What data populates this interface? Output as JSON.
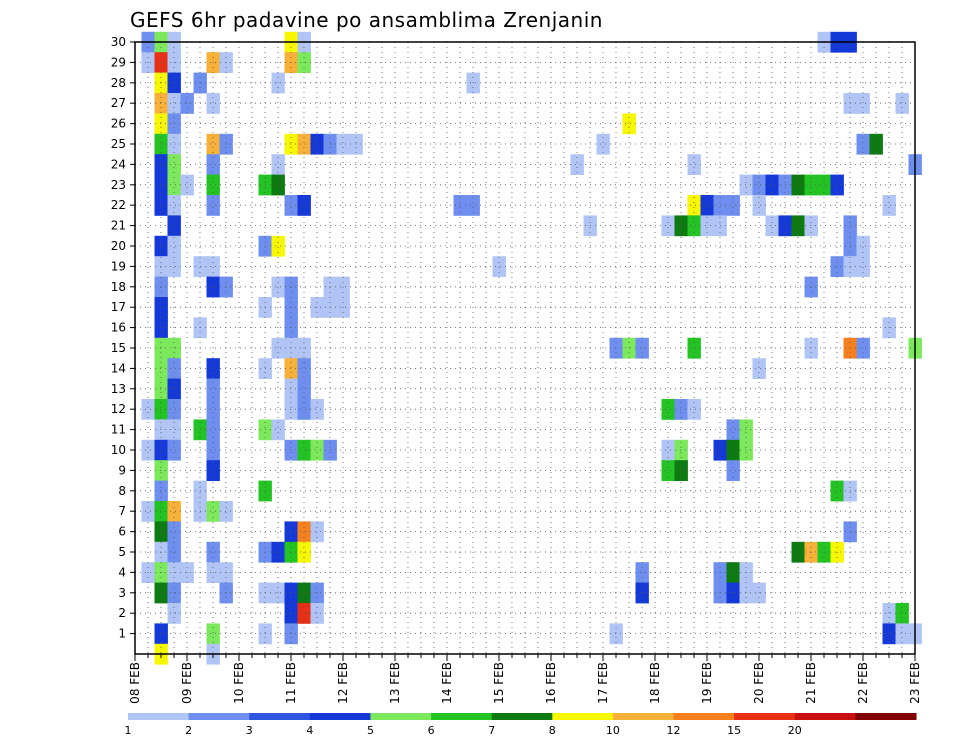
{
  "chart_data": {
    "type": "heatmap",
    "title": "GEFS 6hr padavine po ansamblima Zrenjanin",
    "xlabel": "",
    "ylabel": "",
    "x_tick_labels": [
      "08 FEB",
      "09 FEB",
      "10 FEB",
      "11 FEB",
      "12 FEB",
      "13 FEB",
      "14 FEB",
      "15 FEB",
      "16 FEB",
      "17 FEB",
      "18 FEB",
      "19 FEB",
      "20 FEB",
      "21 FEB",
      "22 FEB",
      "23 FEB"
    ],
    "y_tick_labels": [
      "1",
      "2",
      "3",
      "4",
      "5",
      "6",
      "7",
      "8",
      "9",
      "10",
      "11",
      "12",
      "13",
      "14",
      "15",
      "16",
      "17",
      "18",
      "19",
      "20",
      "21",
      "22",
      "23",
      "24",
      "25",
      "26",
      "27",
      "28",
      "29",
      "30"
    ],
    "x_range_steps": [
      0,
      60
    ],
    "y_range": [
      0,
      30
    ],
    "grid": true,
    "legend": {
      "position": "bottom",
      "labels": [
        "1",
        "2",
        "3",
        "4",
        "5",
        "6",
        "7",
        "8",
        "10",
        "12",
        "15",
        "20"
      ],
      "colors": [
        "#b0c4f5",
        "#6e8ff0",
        "#2f55e0",
        "#1538d8",
        "#7ce85c",
        "#22c322",
        "#0e7a12",
        "#f7f700",
        "#f7b038",
        "#f7801e",
        "#e83015",
        "#c81010",
        "#800000"
      ]
    },
    "palette": {
      "L1": "#b0c4f5",
      "L2": "#6e8ff0",
      "L3": "#2f55e0",
      "L4": "#1538d8",
      "G5": "#7ce85c",
      "G6": "#22c322",
      "G7": "#0e7a12",
      "Y8": "#f7f700",
      "O10": "#f7b038",
      "O12": "#f7801e",
      "R15": "#e83015",
      "R20": "#c81010",
      "DR": "#800000"
    },
    "cells": [
      {
        "row": 30,
        "cells": [
          [
            1,
            "L2"
          ],
          [
            2,
            "G5"
          ],
          [
            3,
            "L1"
          ],
          [
            12,
            "Y8"
          ],
          [
            13,
            "L1"
          ],
          [
            53,
            "L1"
          ],
          [
            54,
            "L4"
          ],
          [
            55,
            "L4"
          ]
        ]
      },
      {
        "row": 29,
        "cells": [
          [
            1,
            "L1"
          ],
          [
            2,
            "R15"
          ],
          [
            3,
            "L1"
          ],
          [
            6,
            "O10"
          ],
          [
            7,
            "L1"
          ],
          [
            12,
            "O10"
          ],
          [
            13,
            "G5"
          ]
        ]
      },
      {
        "row": 28,
        "cells": [
          [
            2,
            "Y8"
          ],
          [
            3,
            "L4"
          ],
          [
            5,
            "L2"
          ],
          [
            11,
            "L1"
          ],
          [
            26,
            "L1"
          ]
        ]
      },
      {
        "row": 27,
        "cells": [
          [
            2,
            "O10"
          ],
          [
            3,
            "L1"
          ],
          [
            4,
            "L2"
          ],
          [
            6,
            "L1"
          ],
          [
            55,
            "L1"
          ],
          [
            56,
            "L1"
          ],
          [
            59,
            "L1"
          ]
        ]
      },
      {
        "row": 26,
        "cells": [
          [
            2,
            "Y8"
          ],
          [
            3,
            "L2"
          ],
          [
            38,
            "Y8"
          ]
        ]
      },
      {
        "row": 25,
        "cells": [
          [
            2,
            "G6"
          ],
          [
            3,
            "L1"
          ],
          [
            6,
            "O10"
          ],
          [
            7,
            "L2"
          ],
          [
            12,
            "Y8"
          ],
          [
            13,
            "O10"
          ],
          [
            14,
            "L4"
          ],
          [
            15,
            "L2"
          ],
          [
            16,
            "L1"
          ],
          [
            17,
            "L1"
          ],
          [
            36,
            "L1"
          ],
          [
            56,
            "L2"
          ],
          [
            57,
            "G7"
          ]
        ]
      },
      {
        "row": 24,
        "cells": [
          [
            2,
            "L4"
          ],
          [
            3,
            "G5"
          ],
          [
            6,
            "L2"
          ],
          [
            11,
            "L1"
          ],
          [
            34,
            "L1"
          ],
          [
            43,
            "L1"
          ],
          [
            60,
            "L2"
          ]
        ]
      },
      {
        "row": 23,
        "cells": [
          [
            2,
            "L4"
          ],
          [
            3,
            "G5"
          ],
          [
            4,
            "L1"
          ],
          [
            6,
            "G6"
          ],
          [
            10,
            "G6"
          ],
          [
            11,
            "G7"
          ],
          [
            47,
            "L1"
          ],
          [
            48,
            "L2"
          ],
          [
            49,
            "L4"
          ],
          [
            50,
            "L2"
          ],
          [
            51,
            "G7"
          ],
          [
            52,
            "G6"
          ],
          [
            53,
            "G6"
          ],
          [
            54,
            "L4"
          ]
        ]
      },
      {
        "row": 22,
        "cells": [
          [
            2,
            "L4"
          ],
          [
            3,
            "L1"
          ],
          [
            6,
            "L2"
          ],
          [
            12,
            "L2"
          ],
          [
            13,
            "L4"
          ],
          [
            25,
            "L2"
          ],
          [
            26,
            "L2"
          ],
          [
            43,
            "Y8"
          ],
          [
            44,
            "L4"
          ],
          [
            45,
            "L2"
          ],
          [
            46,
            "L2"
          ],
          [
            48,
            "L1"
          ],
          [
            58,
            "L1"
          ]
        ]
      },
      {
        "row": 21,
        "cells": [
          [
            3,
            "L4"
          ],
          [
            35,
            "L1"
          ],
          [
            41,
            "L1"
          ],
          [
            42,
            "G7"
          ],
          [
            43,
            "G6"
          ],
          [
            44,
            "L1"
          ],
          [
            45,
            "L1"
          ],
          [
            49,
            "L1"
          ],
          [
            50,
            "L4"
          ],
          [
            51,
            "G7"
          ],
          [
            52,
            "L1"
          ],
          [
            55,
            "L2"
          ]
        ]
      },
      {
        "row": 20,
        "cells": [
          [
            2,
            "L4"
          ],
          [
            3,
            "L1"
          ],
          [
            10,
            "L2"
          ],
          [
            11,
            "Y8"
          ],
          [
            55,
            "L2"
          ],
          [
            56,
            "L1"
          ]
        ]
      },
      {
        "row": 19,
        "cells": [
          [
            2,
            "L1"
          ],
          [
            3,
            "L1"
          ],
          [
            5,
            "L1"
          ],
          [
            6,
            "L1"
          ],
          [
            28,
            "L1"
          ],
          [
            54,
            "L2"
          ],
          [
            55,
            "L1"
          ],
          [
            56,
            "L1"
          ]
        ]
      },
      {
        "row": 18,
        "cells": [
          [
            2,
            "L2"
          ],
          [
            6,
            "L4"
          ],
          [
            7,
            "L2"
          ],
          [
            11,
            "L1"
          ],
          [
            12,
            "L2"
          ],
          [
            15,
            "L1"
          ],
          [
            16,
            "L1"
          ],
          [
            52,
            "L2"
          ]
        ]
      },
      {
        "row": 17,
        "cells": [
          [
            2,
            "L4"
          ],
          [
            10,
            "L1"
          ],
          [
            12,
            "L2"
          ],
          [
            14,
            "L1"
          ],
          [
            15,
            "L1"
          ],
          [
            16,
            "L1"
          ]
        ]
      },
      {
        "row": 16,
        "cells": [
          [
            2,
            "L4"
          ],
          [
            5,
            "L1"
          ],
          [
            12,
            "L2"
          ],
          [
            58,
            "L1"
          ]
        ]
      },
      {
        "row": 15,
        "cells": [
          [
            2,
            "G5"
          ],
          [
            3,
            "G5"
          ],
          [
            11,
            "L1"
          ],
          [
            12,
            "L1"
          ],
          [
            13,
            "L1"
          ],
          [
            37,
            "L2"
          ],
          [
            38,
            "G5"
          ],
          [
            39,
            "L2"
          ],
          [
            43,
            "G6"
          ],
          [
            52,
            "L1"
          ],
          [
            55,
            "O12"
          ],
          [
            56,
            "L2"
          ],
          [
            60,
            "G5"
          ]
        ]
      },
      {
        "row": 14,
        "cells": [
          [
            2,
            "G5"
          ],
          [
            3,
            "L2"
          ],
          [
            6,
            "L4"
          ],
          [
            10,
            "L1"
          ],
          [
            12,
            "O10"
          ],
          [
            13,
            "L2"
          ],
          [
            48,
            "L1"
          ]
        ]
      },
      {
        "row": 13,
        "cells": [
          [
            2,
            "G5"
          ],
          [
            3,
            "L4"
          ],
          [
            6,
            "L2"
          ],
          [
            12,
            "L1"
          ],
          [
            13,
            "L2"
          ]
        ]
      },
      {
        "row": 12,
        "cells": [
          [
            1,
            "L1"
          ],
          [
            2,
            "G6"
          ],
          [
            3,
            "L2"
          ],
          [
            6,
            "L2"
          ],
          [
            12,
            "L1"
          ],
          [
            13,
            "L2"
          ],
          [
            14,
            "L1"
          ],
          [
            41,
            "G6"
          ],
          [
            42,
            "L2"
          ],
          [
            43,
            "L1"
          ]
        ]
      },
      {
        "row": 11,
        "cells": [
          [
            2,
            "L1"
          ],
          [
            3,
            "L1"
          ],
          [
            5,
            "G6"
          ],
          [
            6,
            "L2"
          ],
          [
            10,
            "G5"
          ],
          [
            11,
            "L1"
          ],
          [
            46,
            "L2"
          ],
          [
            47,
            "G5"
          ]
        ]
      },
      {
        "row": 10,
        "cells": [
          [
            1,
            "L1"
          ],
          [
            2,
            "L4"
          ],
          [
            3,
            "L2"
          ],
          [
            6,
            "L2"
          ],
          [
            12,
            "L2"
          ],
          [
            13,
            "G6"
          ],
          [
            14,
            "G5"
          ],
          [
            15,
            "L2"
          ],
          [
            41,
            "L1"
          ],
          [
            42,
            "G5"
          ],
          [
            45,
            "L4"
          ],
          [
            46,
            "G7"
          ],
          [
            47,
            "G5"
          ]
        ]
      },
      {
        "row": 9,
        "cells": [
          [
            2,
            "G5"
          ],
          [
            6,
            "L4"
          ],
          [
            41,
            "G6"
          ],
          [
            42,
            "G7"
          ],
          [
            46,
            "L2"
          ]
        ]
      },
      {
        "row": 8,
        "cells": [
          [
            2,
            "L2"
          ],
          [
            5,
            "L1"
          ],
          [
            10,
            "G6"
          ],
          [
            54,
            "G6"
          ],
          [
            55,
            "L1"
          ]
        ]
      },
      {
        "row": 7,
        "cells": [
          [
            1,
            "L1"
          ],
          [
            2,
            "G6"
          ],
          [
            3,
            "O10"
          ],
          [
            5,
            "L1"
          ],
          [
            6,
            "G5"
          ],
          [
            7,
            "L1"
          ]
        ]
      },
      {
        "row": 6,
        "cells": [
          [
            2,
            "G7"
          ],
          [
            3,
            "L2"
          ],
          [
            12,
            "L4"
          ],
          [
            13,
            "O12"
          ],
          [
            14,
            "L1"
          ],
          [
            55,
            "L2"
          ]
        ]
      },
      {
        "row": 5,
        "cells": [
          [
            2,
            "L1"
          ],
          [
            3,
            "L2"
          ],
          [
            6,
            "L2"
          ],
          [
            10,
            "L2"
          ],
          [
            11,
            "L4"
          ],
          [
            12,
            "G6"
          ],
          [
            13,
            "Y8"
          ],
          [
            51,
            "G7"
          ],
          [
            52,
            "O10"
          ],
          [
            53,
            "G6"
          ],
          [
            54,
            "Y8"
          ]
        ]
      },
      {
        "row": 4,
        "cells": [
          [
            1,
            "L1"
          ],
          [
            2,
            "G5"
          ],
          [
            3,
            "L1"
          ],
          [
            4,
            "L1"
          ],
          [
            6,
            "L1"
          ],
          [
            7,
            "L1"
          ],
          [
            39,
            "L2"
          ],
          [
            45,
            "L2"
          ],
          [
            46,
            "G7"
          ],
          [
            47,
            "L1"
          ]
        ]
      },
      {
        "row": 3,
        "cells": [
          [
            2,
            "G7"
          ],
          [
            3,
            "L2"
          ],
          [
            7,
            "L2"
          ],
          [
            10,
            "L1"
          ],
          [
            11,
            "L1"
          ],
          [
            12,
            "L4"
          ],
          [
            13,
            "G7"
          ],
          [
            14,
            "L2"
          ],
          [
            39,
            "L4"
          ],
          [
            45,
            "L2"
          ],
          [
            46,
            "L4"
          ],
          [
            47,
            "L1"
          ],
          [
            48,
            "L1"
          ]
        ]
      },
      {
        "row": 2,
        "cells": [
          [
            3,
            "L1"
          ],
          [
            12,
            "L4"
          ],
          [
            13,
            "R15"
          ],
          [
            14,
            "L1"
          ],
          [
            58,
            "L1"
          ],
          [
            59,
            "G6"
          ]
        ]
      },
      {
        "row": 1,
        "cells": [
          [
            2,
            "L4"
          ],
          [
            6,
            "G5"
          ],
          [
            10,
            "L1"
          ],
          [
            12,
            "L2"
          ],
          [
            37,
            "L1"
          ],
          [
            58,
            "L4"
          ],
          [
            59,
            "L1"
          ],
          [
            60,
            "L1"
          ]
        ]
      },
      {
        "row": 0,
        "cells": [
          [
            2,
            "Y8"
          ],
          [
            6,
            "L1"
          ]
        ]
      }
    ]
  }
}
